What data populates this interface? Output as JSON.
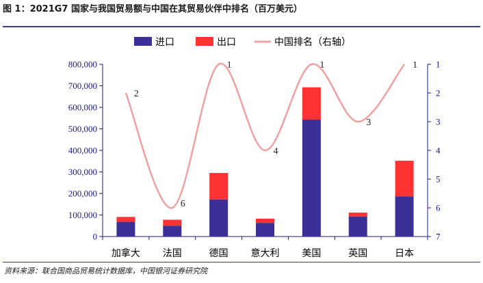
{
  "figure_title": "图 1：2021G7 国家与我国贸易额与中国在其贸易伙伴中排名（百万美元）",
  "source_note": "资料来源：联合国商品贸易统计数据库，中国银河证券研究院",
  "colors": {
    "import": "#3b3096",
    "export": "#ff3333",
    "rank": "#f0a0a0",
    "axis": "#1a1a8a"
  },
  "chart_data": {
    "type": "bar",
    "stacked": true,
    "categories": [
      "加拿大",
      "法国",
      "德国",
      "意大利",
      "美国",
      "英国",
      "日本"
    ],
    "series": [
      {
        "name": "进口",
        "values": [
          68000,
          50000,
          172000,
          63000,
          543000,
          93000,
          186000
        ]
      },
      {
        "name": "出口",
        "values": [
          23000,
          28000,
          123000,
          20000,
          150000,
          18000,
          166000
        ]
      }
    ],
    "line_series": {
      "name": "中国排名（右轴）",
      "values": [
        2,
        6,
        1,
        4,
        1,
        3,
        1
      ],
      "axis": "right"
    },
    "y_left": {
      "range": [
        0,
        800000
      ],
      "ticks": [
        "0",
        "100,000",
        "200,000",
        "300,000",
        "400,000",
        "500,000",
        "600,000",
        "700,000",
        "800,000"
      ]
    },
    "y_right": {
      "range": [
        1,
        7
      ],
      "inverted": true,
      "ticks": [
        "1",
        "2",
        "3",
        "4",
        "5",
        "6",
        "7"
      ]
    },
    "legend_position": "top"
  }
}
